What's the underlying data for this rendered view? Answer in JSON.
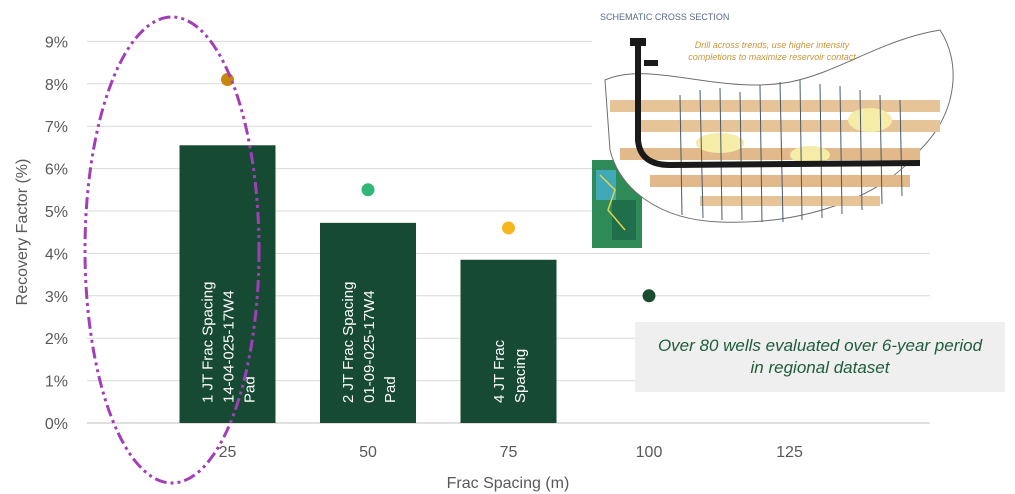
{
  "chart_data": {
    "type": "bar",
    "xlabel": "Frac Spacing (m)",
    "ylabel": "Recovery Factor (%)",
    "x_ticks": [
      "25",
      "50",
      "75",
      "100",
      "125"
    ],
    "y_ticks": [
      "0%",
      "1%",
      "2%",
      "3%",
      "4%",
      "5%",
      "6%",
      "7%",
      "8%",
      "9%"
    ],
    "xlim": [
      0,
      150
    ],
    "ylim": [
      0,
      9.5
    ],
    "grid": true,
    "bars": [
      {
        "x": 25,
        "value": 6.55,
        "label": [
          "1 JT Frac Spacing",
          "14-04-025-17W4",
          "Pad"
        ]
      },
      {
        "x": 50,
        "value": 4.72,
        "label": [
          "2 JT Frac Spacing",
          "01-09-025-17W4",
          "Pad"
        ]
      },
      {
        "x": 75,
        "value": 3.85,
        "label": [
          "4 JT Frac",
          "Spacing"
        ]
      }
    ],
    "points": [
      {
        "x": 25,
        "y": 8.1,
        "color": "#c8860a"
      },
      {
        "x": 50,
        "y": 5.5,
        "color": "#2fb879"
      },
      {
        "x": 75,
        "y": 4.6,
        "color": "#f5b71e"
      },
      {
        "x": 100,
        "y": 3.0,
        "color": "#1a4d30"
      }
    ],
    "colors": {
      "bar": "#164a33",
      "grid": "#d9d9d9",
      "ellipse": "#a23fb8"
    },
    "annotation": "Over 80 wells evaluated over 6-year period in regional dataset",
    "inset": {
      "caption": "SCHEMATIC CROSS SECTION",
      "note_lines": [
        "Drill across trends, use higher intensity",
        "completions to maximize reservoir contact"
      ]
    }
  }
}
